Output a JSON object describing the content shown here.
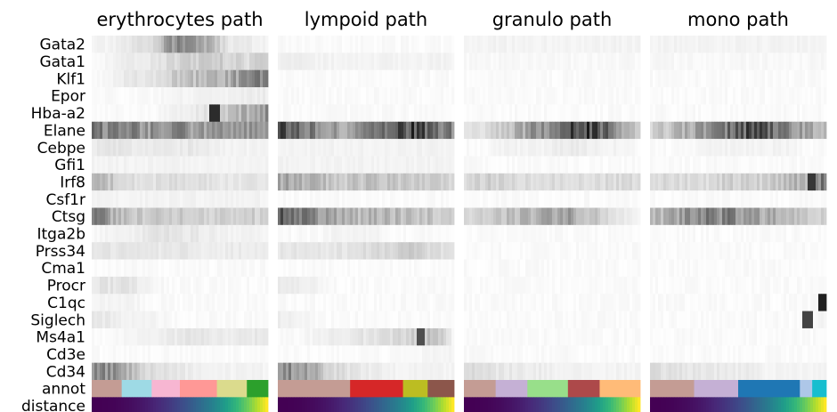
{
  "chart_data": {
    "type": "heatmap",
    "panels": [
      {
        "title": "erythrocytes path",
        "annot_colors": [
          "#c49c94",
          "#9edae5",
          "#f7b6d2",
          "#ff9896",
          "#dbdb8d",
          "#2ca02c"
        ],
        "annot_fracs": [
          0.17,
          0.17,
          0.16,
          0.21,
          0.17,
          0.12
        ]
      },
      {
        "title": "lympoid path",
        "annot_colors": [
          "#c49c94",
          "#d62728",
          "#bcbd22",
          "#8c564b"
        ],
        "annot_fracs": [
          0.41,
          0.3,
          0.14,
          0.15
        ]
      },
      {
        "title": "granulo path",
        "annot_colors": [
          "#c49c94",
          "#c5b0d5",
          "#98df8a",
          "#ad494a",
          "#ffbb78"
        ],
        "annot_fracs": [
          0.18,
          0.18,
          0.23,
          0.18,
          0.23
        ]
      },
      {
        "title": "mono path",
        "annot_colors": [
          "#c49c94",
          "#c5b0d5",
          "#1f77b4",
          "#aec7e8",
          "#17becf"
        ],
        "annot_fracs": [
          0.25,
          0.25,
          0.35,
          0.07,
          0.08
        ]
      }
    ],
    "genes": [
      "Gata2",
      "Gata1",
      "Klf1",
      "Epor",
      "Hba-a2",
      "Elane",
      "Cebpe",
      "Gfi1",
      "Irf8",
      "Csf1r",
      "Ctsg",
      "Itga2b",
      "Prss34",
      "Cma1",
      "Procr",
      "C1qc",
      "Siglech",
      "Ms4a1",
      "Cd3e",
      "Cd34"
    ],
    "extra_rows": [
      "annot",
      "distance"
    ],
    "expression_profiles": [
      [
        [
          0.05,
          0.05,
          0.1,
          0.15,
          0.45,
          0.5,
          0.3,
          0.1,
          0.08,
          0.05
        ],
        [
          0.02,
          0.02,
          0.02,
          0.02,
          0.02,
          0.02,
          0.02,
          0.02,
          0.02,
          0.02
        ],
        [
          0.05,
          0.05,
          0.05,
          0.05,
          0.05,
          0.05,
          0.05,
          0.05,
          0.05,
          0.05
        ],
        [
          0.05,
          0.05,
          0.05,
          0.05,
          0.05,
          0.05,
          0.05,
          0.05,
          0.05,
          0.05
        ]
      ],
      [
        [
          0.02,
          0.05,
          0.08,
          0.1,
          0.15,
          0.2,
          0.2,
          0.2,
          0.15,
          0.2
        ],
        [
          0.08,
          0.08,
          0.05,
          0.05,
          0.05,
          0.05,
          0.05,
          0.05,
          0.05,
          0.05
        ],
        [
          0.03,
          0.03,
          0.03,
          0.03,
          0.03,
          0.03,
          0.03,
          0.03,
          0.03,
          0.03
        ],
        [
          0.03,
          0.03,
          0.03,
          0.03,
          0.03,
          0.03,
          0.03,
          0.03,
          0.03,
          0.03
        ]
      ],
      [
        [
          0.02,
          0.05,
          0.1,
          0.1,
          0.2,
          0.25,
          0.3,
          0.35,
          0.45,
          0.6
        ],
        [
          0.02,
          0.02,
          0.02,
          0.02,
          0.02,
          0.02,
          0.02,
          0.02,
          0.02,
          0.02
        ],
        [
          0.02,
          0.02,
          0.02,
          0.02,
          0.02,
          0.02,
          0.02,
          0.02,
          0.02,
          0.02
        ],
        [
          0.02,
          0.02,
          0.02,
          0.02,
          0.02,
          0.02,
          0.02,
          0.02,
          0.02,
          0.02
        ]
      ],
      [
        [
          0.02,
          0.02,
          0.02,
          0.02,
          0.05,
          0.05,
          0.05,
          0.05,
          0.08,
          0.08
        ],
        [
          0.02,
          0.02,
          0.02,
          0.02,
          0.02,
          0.02,
          0.02,
          0.02,
          0.02,
          0.02
        ],
        [
          0.02,
          0.02,
          0.02,
          0.02,
          0.02,
          0.02,
          0.02,
          0.02,
          0.02,
          0.02
        ],
        [
          0.02,
          0.02,
          0.02,
          0.02,
          0.02,
          0.02,
          0.02,
          0.02,
          0.02,
          0.02
        ]
      ],
      [
        [
          0.02,
          0.02,
          0.02,
          0.02,
          0.05,
          0.08,
          0.12,
          0.25,
          0.35,
          0.45
        ],
        [
          0.02,
          0.02,
          0.02,
          0.02,
          0.02,
          0.02,
          0.02,
          0.02,
          0.02,
          0.02
        ],
        [
          0.02,
          0.02,
          0.02,
          0.02,
          0.02,
          0.02,
          0.02,
          0.02,
          0.02,
          0.02
        ],
        [
          0.02,
          0.02,
          0.02,
          0.02,
          0.02,
          0.02,
          0.02,
          0.02,
          0.02,
          0.02
        ]
      ],
      [
        [
          0.6,
          0.5,
          0.5,
          0.45,
          0.5,
          0.45,
          0.4,
          0.45,
          0.4,
          0.45
        ],
        [
          0.7,
          0.6,
          0.5,
          0.4,
          0.4,
          0.5,
          0.65,
          0.8,
          0.7,
          0.5
        ],
        [
          0.1,
          0.15,
          0.25,
          0.35,
          0.5,
          0.7,
          0.85,
          0.7,
          0.4,
          0.2
        ],
        [
          0.2,
          0.25,
          0.35,
          0.45,
          0.6,
          0.75,
          0.7,
          0.5,
          0.4,
          0.3
        ]
      ],
      [
        [
          0.08,
          0.1,
          0.1,
          0.08,
          0.08,
          0.1,
          0.08,
          0.05,
          0.05,
          0.05
        ],
        [
          0.05,
          0.05,
          0.05,
          0.05,
          0.05,
          0.05,
          0.05,
          0.05,
          0.05,
          0.05
        ],
        [
          0.02,
          0.02,
          0.05,
          0.05,
          0.05,
          0.08,
          0.08,
          0.05,
          0.05,
          0.02
        ],
        [
          0.02,
          0.02,
          0.02,
          0.05,
          0.05,
          0.05,
          0.05,
          0.05,
          0.02,
          0.02
        ]
      ],
      [
        [
          0.05,
          0.05,
          0.05,
          0.05,
          0.05,
          0.05,
          0.05,
          0.05,
          0.05,
          0.05
        ],
        [
          0.05,
          0.05,
          0.05,
          0.05,
          0.05,
          0.05,
          0.05,
          0.05,
          0.05,
          0.05
        ],
        [
          0.02,
          0.02,
          0.02,
          0.02,
          0.02,
          0.02,
          0.02,
          0.02,
          0.02,
          0.02
        ],
        [
          0.02,
          0.02,
          0.02,
          0.02,
          0.02,
          0.02,
          0.02,
          0.02,
          0.02,
          0.02
        ]
      ],
      [
        [
          0.35,
          0.25,
          0.15,
          0.12,
          0.15,
          0.12,
          0.12,
          0.1,
          0.12,
          0.1
        ],
        [
          0.35,
          0.35,
          0.3,
          0.2,
          0.25,
          0.25,
          0.25,
          0.2,
          0.2,
          0.15
        ],
        [
          0.15,
          0.2,
          0.2,
          0.15,
          0.15,
          0.15,
          0.15,
          0.15,
          0.15,
          0.15
        ],
        [
          0.15,
          0.15,
          0.15,
          0.15,
          0.2,
          0.2,
          0.2,
          0.25,
          0.35,
          0.6
        ]
      ],
      [
        [
          0.05,
          0.05,
          0.05,
          0.05,
          0.05,
          0.05,
          0.05,
          0.05,
          0.05,
          0.05
        ],
        [
          0.02,
          0.02,
          0.02,
          0.02,
          0.02,
          0.02,
          0.02,
          0.02,
          0.02,
          0.02
        ],
        [
          0.02,
          0.02,
          0.02,
          0.02,
          0.02,
          0.02,
          0.02,
          0.02,
          0.02,
          0.02
        ],
        [
          0.02,
          0.02,
          0.02,
          0.02,
          0.02,
          0.02,
          0.02,
          0.02,
          0.02,
          0.02
        ]
      ],
      [
        [
          0.55,
          0.35,
          0.25,
          0.2,
          0.25,
          0.2,
          0.2,
          0.2,
          0.2,
          0.2
        ],
        [
          0.65,
          0.55,
          0.45,
          0.35,
          0.3,
          0.3,
          0.3,
          0.25,
          0.25,
          0.2
        ],
        [
          0.15,
          0.2,
          0.25,
          0.3,
          0.35,
          0.4,
          0.35,
          0.2,
          0.1,
          0.05
        ],
        [
          0.3,
          0.35,
          0.45,
          0.5,
          0.5,
          0.45,
          0.35,
          0.3,
          0.25,
          0.2
        ]
      ],
      [
        [
          0.02,
          0.05,
          0.05,
          0.1,
          0.12,
          0.1,
          0.08,
          0.05,
          0.05,
          0.05
        ],
        [
          0.02,
          0.02,
          0.02,
          0.05,
          0.05,
          0.05,
          0.02,
          0.02,
          0.02,
          0.02
        ],
        [
          0.02,
          0.02,
          0.02,
          0.02,
          0.02,
          0.02,
          0.02,
          0.02,
          0.02,
          0.02
        ],
        [
          0.02,
          0.02,
          0.02,
          0.02,
          0.02,
          0.02,
          0.02,
          0.02,
          0.02,
          0.02
        ]
      ],
      [
        [
          0.1,
          0.1,
          0.1,
          0.1,
          0.1,
          0.1,
          0.08,
          0.08,
          0.08,
          0.08
        ],
        [
          0.1,
          0.1,
          0.1,
          0.12,
          0.12,
          0.15,
          0.2,
          0.2,
          0.15,
          0.1
        ],
        [
          0.02,
          0.02,
          0.02,
          0.02,
          0.02,
          0.02,
          0.02,
          0.02,
          0.02,
          0.02
        ],
        [
          0.02,
          0.02,
          0.02,
          0.02,
          0.02,
          0.02,
          0.02,
          0.02,
          0.02,
          0.02
        ]
      ],
      [
        [
          0.02,
          0.02,
          0.02,
          0.02,
          0.02,
          0.02,
          0.02,
          0.02,
          0.02,
          0.02
        ],
        [
          0.02,
          0.02,
          0.02,
          0.02,
          0.02,
          0.02,
          0.02,
          0.02,
          0.02,
          0.02
        ],
        [
          0.02,
          0.02,
          0.02,
          0.02,
          0.02,
          0.02,
          0.02,
          0.02,
          0.02,
          0.02
        ],
        [
          0.02,
          0.02,
          0.02,
          0.02,
          0.02,
          0.02,
          0.02,
          0.02,
          0.02,
          0.02
        ]
      ],
      [
        [
          0.1,
          0.12,
          0.1,
          0.05,
          0.02,
          0.02,
          0.02,
          0.02,
          0.02,
          0.02
        ],
        [
          0.08,
          0.08,
          0.05,
          0.02,
          0.02,
          0.02,
          0.02,
          0.02,
          0.02,
          0.02
        ],
        [
          0.02,
          0.02,
          0.02,
          0.02,
          0.02,
          0.02,
          0.02,
          0.02,
          0.02,
          0.02
        ],
        [
          0.02,
          0.02,
          0.02,
          0.02,
          0.02,
          0.02,
          0.02,
          0.02,
          0.02,
          0.02
        ]
      ],
      [
        [
          0.05,
          0.05,
          0.05,
          0.02,
          0.02,
          0.02,
          0.02,
          0.02,
          0.02,
          0.02
        ],
        [
          0.02,
          0.02,
          0.02,
          0.02,
          0.02,
          0.02,
          0.02,
          0.02,
          0.02,
          0.02
        ],
        [
          0.02,
          0.02,
          0.02,
          0.02,
          0.02,
          0.02,
          0.02,
          0.02,
          0.02,
          0.02
        ],
        [
          0.02,
          0.02,
          0.02,
          0.02,
          0.02,
          0.02,
          0.02,
          0.02,
          0.02,
          0.05
        ]
      ],
      [
        [
          0.1,
          0.08,
          0.05,
          0.05,
          0.02,
          0.02,
          0.02,
          0.02,
          0.02,
          0.02
        ],
        [
          0.08,
          0.05,
          0.02,
          0.02,
          0.02,
          0.02,
          0.02,
          0.02,
          0.02,
          0.02
        ],
        [
          0.02,
          0.02,
          0.02,
          0.02,
          0.02,
          0.02,
          0.02,
          0.02,
          0.02,
          0.02
        ],
        [
          0.02,
          0.02,
          0.02,
          0.02,
          0.02,
          0.02,
          0.02,
          0.02,
          0.02,
          0.05
        ]
      ],
      [
        [
          0.02,
          0.02,
          0.05,
          0.05,
          0.08,
          0.1,
          0.1,
          0.08,
          0.1,
          0.08
        ],
        [
          0.02,
          0.02,
          0.05,
          0.08,
          0.1,
          0.12,
          0.15,
          0.2,
          0.3,
          0.05
        ],
        [
          0.02,
          0.02,
          0.02,
          0.02,
          0.02,
          0.02,
          0.02,
          0.02,
          0.02,
          0.02
        ],
        [
          0.02,
          0.02,
          0.02,
          0.02,
          0.02,
          0.02,
          0.02,
          0.02,
          0.02,
          0.02
        ]
      ],
      [
        [
          0.02,
          0.02,
          0.02,
          0.02,
          0.02,
          0.02,
          0.02,
          0.02,
          0.02,
          0.02
        ],
        [
          0.02,
          0.02,
          0.02,
          0.02,
          0.02,
          0.02,
          0.02,
          0.02,
          0.05,
          0.05
        ],
        [
          0.02,
          0.02,
          0.02,
          0.02,
          0.02,
          0.02,
          0.02,
          0.02,
          0.02,
          0.02
        ],
        [
          0.02,
          0.02,
          0.02,
          0.02,
          0.02,
          0.02,
          0.02,
          0.02,
          0.02,
          0.02
        ]
      ],
      [
        [
          0.55,
          0.45,
          0.3,
          0.15,
          0.1,
          0.08,
          0.05,
          0.05,
          0.05,
          0.05
        ],
        [
          0.55,
          0.45,
          0.3,
          0.15,
          0.1,
          0.08,
          0.05,
          0.05,
          0.05,
          0.05
        ],
        [
          0.15,
          0.12,
          0.1,
          0.08,
          0.08,
          0.05,
          0.05,
          0.05,
          0.05,
          0.05
        ],
        [
          0.15,
          0.12,
          0.1,
          0.1,
          0.08,
          0.08,
          0.05,
          0.05,
          0.05,
          0.05
        ]
      ]
    ],
    "spikes": [
      {
        "panel": 0,
        "gene": "Hba-a2",
        "position": 0.7,
        "value": 0.9
      },
      {
        "panel": 1,
        "gene": "Ms4a1",
        "position": 0.82,
        "value": 0.75
      },
      {
        "panel": 3,
        "gene": "C1qc",
        "position": 0.98,
        "value": 0.95
      },
      {
        "panel": 3,
        "gene": "Siglech",
        "position": 0.9,
        "value": 0.8
      },
      {
        "panel": 3,
        "gene": "Irf8",
        "position": 0.92,
        "value": 0.85
      }
    ],
    "distance_colormap": "viridis",
    "distance_range": [
      0,
      1
    ],
    "value_colormap": "Greys",
    "value_range": [
      0,
      1
    ]
  }
}
